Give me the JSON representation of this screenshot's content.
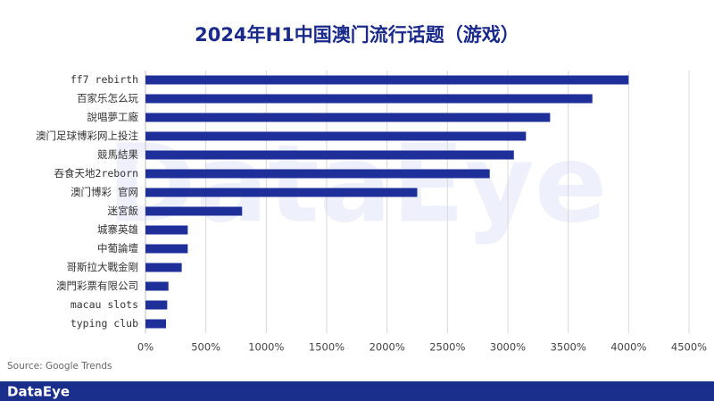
{
  "chart_data": {
    "type": "barh",
    "title": "2024年H1中国澳门流行话题（游戏）",
    "categories": [
      "ff7 rebirth",
      "百家乐怎么玩",
      "說唱夢工廠",
      "澳门足球博彩网上投注",
      "競馬結果",
      "吞食天地2reborn",
      "澳门博彩 官网",
      "迷宮飯",
      "城寨英雄",
      "中葡論壇",
      "哥斯拉大戰金剛",
      "澳門彩票有限公司",
      "macau slots",
      "typing club"
    ],
    "values": [
      4000,
      3700,
      3350,
      3150,
      3050,
      2850,
      2250,
      800,
      350,
      350,
      300,
      190,
      180,
      170
    ],
    "color": "#1f2f9a",
    "xlim": [
      0,
      4500
    ],
    "xticks": [
      {
        "value": 0,
        "label": "0%"
      },
      {
        "value": 500,
        "label": "500%"
      },
      {
        "value": 1000,
        "label": "1000%"
      },
      {
        "value": 1500,
        "label": "1500%"
      },
      {
        "value": 2000,
        "label": "2000%"
      },
      {
        "value": 2500,
        "label": "2500%"
      },
      {
        "value": 3000,
        "label": "3000%"
      },
      {
        "value": 3500,
        "label": "3500%"
      },
      {
        "value": 4000,
        "label": "4000%"
      },
      {
        "value": 4500,
        "label": "4500%"
      }
    ],
    "grid": true,
    "source": "Source: Google Trends",
    "watermark": "DataEye",
    "brand": "DataEye"
  }
}
